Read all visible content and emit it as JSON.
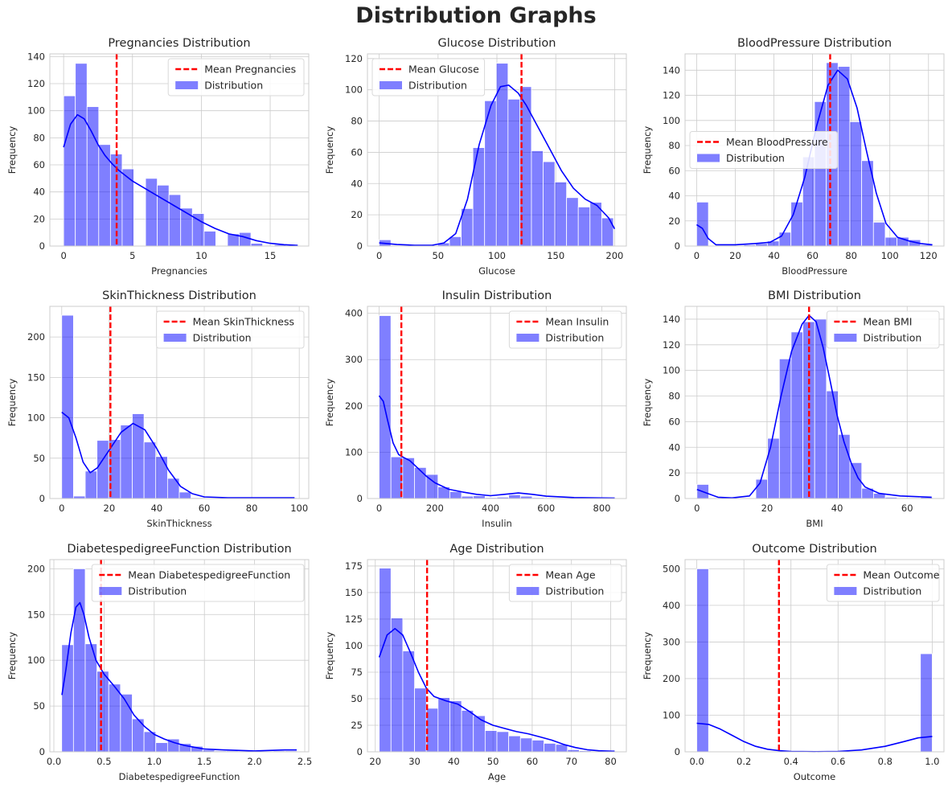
{
  "figure": {
    "suptitle": "Distribution Graphs"
  },
  "colors": {
    "bars": "#0000ff",
    "kde": "#0000ff",
    "mean": "#ff0000",
    "grid": "#cccccc",
    "axes": "#cccccc"
  },
  "chart_data": [
    {
      "type": "bar",
      "title": "Pregnancies Distribution",
      "xlabel": "Pregnancies",
      "ylabel": "Frequency",
      "xlim": [
        -1.0,
        17.8
      ],
      "ylim": [
        0,
        142
      ],
      "xticks": [
        0,
        5,
        10,
        15
      ],
      "yticks": [
        0,
        20,
        40,
        60,
        80,
        100,
        120,
        140
      ],
      "bin_start": 0,
      "bin_width": 0.85,
      "values": [
        111,
        135,
        103,
        75,
        68,
        57,
        0,
        50,
        45,
        38,
        28,
        24,
        11,
        0,
        9,
        10,
        2,
        0,
        1,
        0
      ],
      "mean": 3.85,
      "mean_label": "Mean Pregnancies",
      "kde": [
        [
          0,
          73
        ],
        [
          0.5,
          90
        ],
        [
          1,
          97
        ],
        [
          1.5,
          94
        ],
        [
          2,
          85
        ],
        [
          2.5,
          75
        ],
        [
          3,
          67
        ],
        [
          3.5,
          61
        ],
        [
          4,
          56
        ],
        [
          5,
          48
        ],
        [
          6,
          42
        ],
        [
          7,
          36
        ],
        [
          8,
          30
        ],
        [
          9,
          24
        ],
        [
          10,
          18
        ],
        [
          11,
          13
        ],
        [
          12,
          9
        ],
        [
          13,
          7
        ],
        [
          14,
          4
        ],
        [
          15,
          2
        ],
        [
          16,
          1
        ],
        [
          17,
          0.5
        ]
      ],
      "legend": {
        "mean": "Mean Pregnancies",
        "dist": "Distribution"
      },
      "legend_loc": "upper right"
    },
    {
      "type": "bar",
      "title": "Glucose Distribution",
      "xlabel": "Glucose",
      "ylabel": "Frequency",
      "xlim": [
        -10,
        210
      ],
      "ylim": [
        0,
        123
      ],
      "xticks": [
        0,
        50,
        100,
        150,
        200
      ],
      "yticks": [
        0,
        20,
        40,
        60,
        80,
        100,
        120
      ],
      "bin_start": 0,
      "bin_width": 9.95,
      "values": [
        4,
        0,
        0,
        0,
        0,
        2,
        6,
        24,
        63,
        93,
        117,
        94,
        102,
        61,
        54,
        41,
        31,
        25,
        28,
        18
      ],
      "mean": 120.9,
      "mean_label": "Mean Glucose",
      "kde": [
        [
          0,
          2
        ],
        [
          15,
          1
        ],
        [
          30,
          0.5
        ],
        [
          45,
          0.5
        ],
        [
          55,
          2
        ],
        [
          65,
          8
        ],
        [
          75,
          30
        ],
        [
          85,
          65
        ],
        [
          95,
          90
        ],
        [
          103,
          102
        ],
        [
          110,
          103
        ],
        [
          118,
          98
        ],
        [
          125,
          90
        ],
        [
          135,
          76
        ],
        [
          145,
          62
        ],
        [
          155,
          48
        ],
        [
          165,
          37
        ],
        [
          175,
          30
        ],
        [
          185,
          26
        ],
        [
          195,
          18
        ],
        [
          200,
          11
        ]
      ],
      "legend": {
        "mean": "Mean Glucose",
        "dist": "Distribution"
      },
      "legend_loc": "upper left"
    },
    {
      "type": "bar",
      "title": "BloodPressure Distribution",
      "xlabel": "BloodPressure",
      "ylabel": "Frequency",
      "xlim": [
        -6,
        128
      ],
      "ylim": [
        0,
        153
      ],
      "xticks": [
        0,
        20,
        40,
        60,
        80,
        100,
        120
      ],
      "yticks": [
        0,
        20,
        40,
        60,
        80,
        100,
        120,
        140
      ],
      "bin_start": 0,
      "bin_width": 6.1,
      "values": [
        35,
        0,
        0,
        0,
        1,
        2,
        4,
        11,
        35,
        71,
        115,
        146,
        143,
        99,
        68,
        19,
        7,
        7,
        5,
        1
      ],
      "mean": 69.1,
      "mean_label": "Mean BloodPressure",
      "kde": [
        [
          0,
          17
        ],
        [
          3,
          14
        ],
        [
          6,
          6
        ],
        [
          10,
          1
        ],
        [
          20,
          1
        ],
        [
          30,
          2
        ],
        [
          38,
          3
        ],
        [
          44,
          8
        ],
        [
          50,
          25
        ],
        [
          56,
          55
        ],
        [
          62,
          95
        ],
        [
          68,
          128
        ],
        [
          73,
          140
        ],
        [
          78,
          133
        ],
        [
          83,
          110
        ],
        [
          88,
          75
        ],
        [
          93,
          42
        ],
        [
          98,
          18
        ],
        [
          104,
          7
        ],
        [
          110,
          4
        ],
        [
          116,
          2
        ],
        [
          122,
          1
        ]
      ],
      "legend": {
        "mean": "Mean BloodPressure",
        "dist": "Distribution"
      },
      "legend_loc": "center left"
    },
    {
      "type": "bar",
      "title": "SkinThickness Distribution",
      "xlabel": "SkinThickness",
      "ylabel": "Frequency",
      "xlim": [
        -5,
        104
      ],
      "ylim": [
        0,
        238
      ],
      "xticks": [
        0,
        20,
        40,
        60,
        80,
        100
      ],
      "yticks": [
        0,
        50,
        100,
        150,
        200
      ],
      "bin_start": 0,
      "bin_width": 4.95,
      "values": [
        227,
        3,
        34,
        72,
        73,
        91,
        105,
        70,
        52,
        25,
        8,
        1,
        0,
        0,
        0,
        0,
        0,
        0,
        0,
        1
      ],
      "mean": 20.5,
      "mean_label": "Mean SkinThickness",
      "kde": [
        [
          0,
          107
        ],
        [
          3,
          100
        ],
        [
          6,
          75
        ],
        [
          9,
          45
        ],
        [
          12,
          32
        ],
        [
          15,
          38
        ],
        [
          20,
          60
        ],
        [
          25,
          82
        ],
        [
          30,
          93
        ],
        [
          35,
          85
        ],
        [
          40,
          62
        ],
        [
          45,
          35
        ],
        [
          50,
          15
        ],
        [
          55,
          6
        ],
        [
          60,
          2
        ],
        [
          70,
          1
        ],
        [
          85,
          1
        ],
        [
          98,
          1
        ]
      ],
      "legend": {
        "mean": "Mean SkinThickness",
        "dist": "Distribution"
      },
      "legend_loc": "upper right"
    },
    {
      "type": "bar",
      "title": "Insulin Distribution",
      "xlabel": "Insulin",
      "ylabel": "Frequency",
      "xlim": [
        -42,
        888
      ],
      "ylim": [
        0,
        415
      ],
      "xticks": [
        0,
        200,
        400,
        600,
        800
      ],
      "yticks": [
        0,
        100,
        200,
        300,
        400
      ],
      "bin_start": 0,
      "bin_width": 42.3,
      "values": [
        395,
        90,
        88,
        67,
        52,
        25,
        15,
        5,
        6,
        2,
        3,
        8,
        5,
        2,
        1,
        1,
        0,
        0,
        0,
        1
      ],
      "mean": 79.8,
      "mean_label": "Mean Insulin",
      "kde": [
        [
          0,
          222
        ],
        [
          15,
          210
        ],
        [
          30,
          170
        ],
        [
          50,
          120
        ],
        [
          70,
          95
        ],
        [
          90,
          88
        ],
        [
          110,
          82
        ],
        [
          140,
          65
        ],
        [
          170,
          48
        ],
        [
          200,
          34
        ],
        [
          250,
          20
        ],
        [
          300,
          14
        ],
        [
          350,
          9
        ],
        [
          400,
          6
        ],
        [
          450,
          9
        ],
        [
          500,
          12
        ],
        [
          550,
          9
        ],
        [
          600,
          5
        ],
        [
          700,
          2
        ],
        [
          846,
          1
        ]
      ],
      "legend": {
        "mean": "Mean Insulin",
        "dist": "Distribution"
      },
      "legend_loc": "upper right"
    },
    {
      "type": "bar",
      "title": "BMI Distribution",
      "xlabel": "BMI",
      "ylabel": "Frequency",
      "xlim": [
        -3.4,
        70.5
      ],
      "ylim": [
        0,
        150
      ],
      "xticks": [
        0,
        20,
        40,
        60
      ],
      "yticks": [
        0,
        20,
        40,
        60,
        80,
        100,
        120,
        140
      ],
      "bin_start": 0,
      "bin_width": 3.36,
      "values": [
        11,
        0,
        0,
        0,
        0,
        15,
        47,
        109,
        130,
        138,
        140,
        84,
        50,
        28,
        8,
        4,
        1,
        0,
        0,
        1
      ],
      "mean": 32.0,
      "mean_label": "Mean BMI",
      "kde": [
        [
          0,
          7
        ],
        [
          3,
          4
        ],
        [
          6,
          1
        ],
        [
          10,
          0.5
        ],
        [
          15,
          2
        ],
        [
          18,
          12
        ],
        [
          21,
          40
        ],
        [
          24,
          80
        ],
        [
          27,
          115
        ],
        [
          30,
          136
        ],
        [
          32,
          143
        ],
        [
          34,
          138
        ],
        [
          36,
          118
        ],
        [
          38,
          92
        ],
        [
          40,
          65
        ],
        [
          42,
          44
        ],
        [
          44,
          28
        ],
        [
          46,
          16
        ],
        [
          48,
          9
        ],
        [
          52,
          4
        ],
        [
          58,
          2
        ],
        [
          67,
          1
        ]
      ],
      "legend": {
        "mean": "Mean BMI",
        "dist": "Distribution"
      },
      "legend_loc": "upper right"
    },
    {
      "type": "bar",
      "title": "DiabetespedigreeFunction Distribution",
      "xlabel": "DiabetespedigreeFunction",
      "ylabel": "Frequency",
      "xlim": [
        -0.04,
        2.54
      ],
      "ylim": [
        0,
        210
      ],
      "xticks": [
        0.0,
        0.5,
        1.0,
        1.5,
        2.0,
        2.5
      ],
      "yticks": [
        0,
        50,
        100,
        150,
        200
      ],
      "bin_start": 0.078,
      "bin_width": 0.1172,
      "values": [
        117,
        200,
        118,
        88,
        74,
        63,
        36,
        22,
        10,
        14,
        9,
        6,
        2,
        1,
        1,
        0,
        0,
        0,
        1,
        1
      ],
      "mean": 0.47,
      "mean_label": "Mean DiabetespedigreeFunction",
      "kde": [
        [
          0.08,
          62
        ],
        [
          0.12,
          90
        ],
        [
          0.17,
          130
        ],
        [
          0.22,
          158
        ],
        [
          0.26,
          163
        ],
        [
          0.3,
          150
        ],
        [
          0.35,
          125
        ],
        [
          0.42,
          100
        ],
        [
          0.5,
          85
        ],
        [
          0.6,
          72
        ],
        [
          0.7,
          58
        ],
        [
          0.8,
          40
        ],
        [
          0.9,
          28
        ],
        [
          1.0,
          19
        ],
        [
          1.1,
          14
        ],
        [
          1.2,
          10
        ],
        [
          1.3,
          7
        ],
        [
          1.4,
          5
        ],
        [
          1.5,
          3
        ],
        [
          1.7,
          2
        ],
        [
          2.0,
          1
        ],
        [
          2.3,
          2
        ],
        [
          2.42,
          2
        ]
      ],
      "legend": {
        "mean": "Mean DiabetespedigreeFunction",
        "dist": "Distribution"
      },
      "legend_loc": "upper right"
    },
    {
      "type": "bar",
      "title": "Age Distribution",
      "xlabel": "Age",
      "ylabel": "Frequency",
      "xlim": [
        18,
        84
      ],
      "ylim": [
        0,
        181
      ],
      "xticks": [
        20,
        30,
        40,
        50,
        60,
        70,
        80
      ],
      "yticks": [
        0,
        25,
        50,
        75,
        100,
        125,
        150,
        175
      ],
      "bin_start": 21,
      "bin_width": 3.0,
      "values": [
        173,
        126,
        95,
        60,
        41,
        51,
        48,
        39,
        34,
        20,
        19,
        15,
        13,
        11,
        8,
        7,
        2,
        1,
        0,
        1
      ],
      "mean": 33.2,
      "mean_label": "Mean Age",
      "kde": [
        [
          21,
          89
        ],
        [
          23,
          110
        ],
        [
          25,
          116
        ],
        [
          27,
          110
        ],
        [
          29,
          93
        ],
        [
          31,
          75
        ],
        [
          33,
          60
        ],
        [
          35,
          52
        ],
        [
          38,
          48
        ],
        [
          41,
          45
        ],
        [
          44,
          38
        ],
        [
          47,
          30
        ],
        [
          50,
          25
        ],
        [
          53,
          22
        ],
        [
          56,
          19
        ],
        [
          59,
          17
        ],
        [
          62,
          14
        ],
        [
          65,
          11
        ],
        [
          68,
          7
        ],
        [
          71,
          4
        ],
        [
          74,
          2
        ],
        [
          77,
          1
        ],
        [
          81,
          0.5
        ]
      ],
      "legend": {
        "mean": "Mean Age",
        "dist": "Distribution"
      },
      "legend_loc": "upper right"
    },
    {
      "type": "bar",
      "title": "Outcome Distribution",
      "xlabel": "Outcome",
      "ylabel": "Frequency",
      "xlim": [
        -0.05,
        1.05
      ],
      "ylim": [
        0,
        525
      ],
      "xticks": [
        0.0,
        0.2,
        0.4,
        0.6,
        0.8,
        1.0
      ],
      "yticks": [
        0,
        100,
        200,
        300,
        400,
        500
      ],
      "bin_start": 0,
      "bin_width": 0.05,
      "values": [
        500,
        0,
        0,
        0,
        0,
        0,
        0,
        0,
        0,
        0,
        0,
        0,
        0,
        0,
        0,
        0,
        0,
        0,
        0,
        268
      ],
      "mean": 0.349,
      "mean_label": "Mean Outcome",
      "kde": [
        [
          0,
          78
        ],
        [
          0.05,
          75
        ],
        [
          0.1,
          62
        ],
        [
          0.15,
          45
        ],
        [
          0.2,
          28
        ],
        [
          0.25,
          15
        ],
        [
          0.3,
          7
        ],
        [
          0.35,
          3
        ],
        [
          0.4,
          1
        ],
        [
          0.5,
          0.5
        ],
        [
          0.6,
          1
        ],
        [
          0.7,
          5
        ],
        [
          0.8,
          15
        ],
        [
          0.88,
          28
        ],
        [
          0.94,
          38
        ],
        [
          1.0,
          42
        ]
      ],
      "legend": {
        "mean": "Mean Outcome",
        "dist": "Distribution"
      },
      "legend_loc": "upper right"
    }
  ]
}
